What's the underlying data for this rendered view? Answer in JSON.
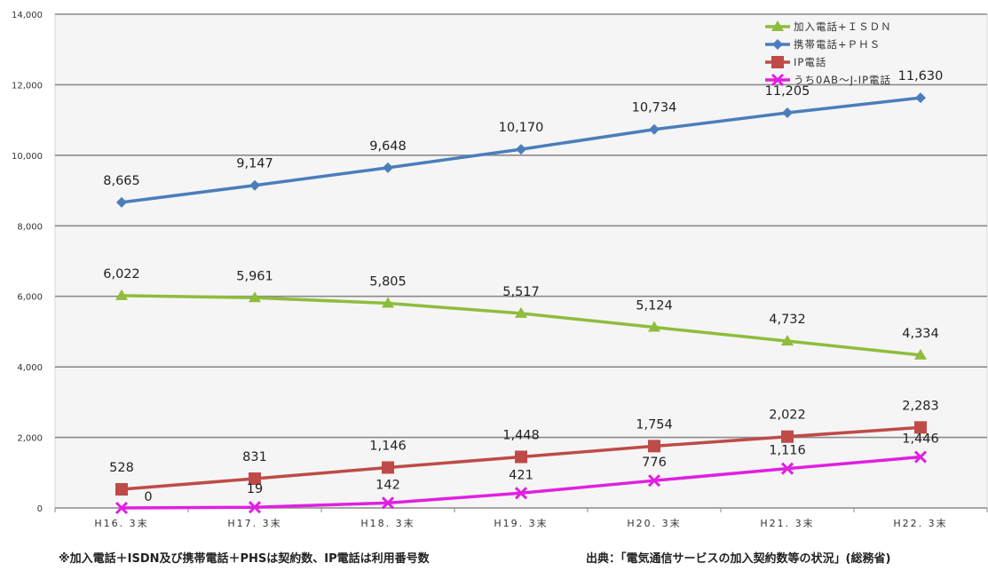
{
  "chart_data": {
    "type": "line",
    "categories": [
      "H16. 3末",
      "H17. 3末",
      "H18. 3末",
      "H19. 3末",
      "H20. 3末",
      "H21. 3末",
      "H22. 3末"
    ],
    "y_ticks": [
      "0",
      "2,000",
      "4,000",
      "6,000",
      "8,000",
      "10,000",
      "12,000",
      "14,000"
    ],
    "ylim": [
      0,
      14000
    ],
    "grid": true,
    "legend_position": "top-right",
    "series": [
      {
        "name": "加入電話+ＩＳＤＮ",
        "color": "#8fbc3c",
        "marker": "triangle",
        "values": [
          6022,
          5961,
          5805,
          5517,
          5124,
          4732,
          4334
        ],
        "labels": [
          "6,022",
          "5,961",
          "5,805",
          "5,517",
          "5,124",
          "4,732",
          "4,334"
        ]
      },
      {
        "name": "携帯電話+ＰＨＳ",
        "color": "#4a7ebb",
        "marker": "diamond",
        "values": [
          8665,
          9147,
          9648,
          10170,
          10734,
          11205,
          11630
        ],
        "labels": [
          "8,665",
          "9,147",
          "9,648",
          "10,170",
          "10,734",
          "11,205",
          "11,630"
        ]
      },
      {
        "name": "IP電話",
        "color": "#be4b48",
        "marker": "square",
        "values": [
          528,
          831,
          1146,
          1448,
          1754,
          2022,
          2283
        ],
        "labels": [
          "528",
          "831",
          "1,146",
          "1,448",
          "1,754",
          "2,022",
          "2,283"
        ]
      },
      {
        "name": "うち0AB～J-IP電話",
        "color": "#e020e0",
        "marker": "x",
        "values": [
          0,
          19,
          142,
          421,
          776,
          1116,
          1446
        ],
        "labels": [
          "0",
          "19",
          "142",
          "421",
          "776",
          "1,116",
          "1,446"
        ]
      }
    ]
  },
  "footnotes": {
    "left": "※加入電話＋ISDN及び携帯電話＋PHSは契約数、IP電話は利用番号数",
    "right": "出典：「電気通信サービスの加入契約数等の状況」(総務省)"
  }
}
